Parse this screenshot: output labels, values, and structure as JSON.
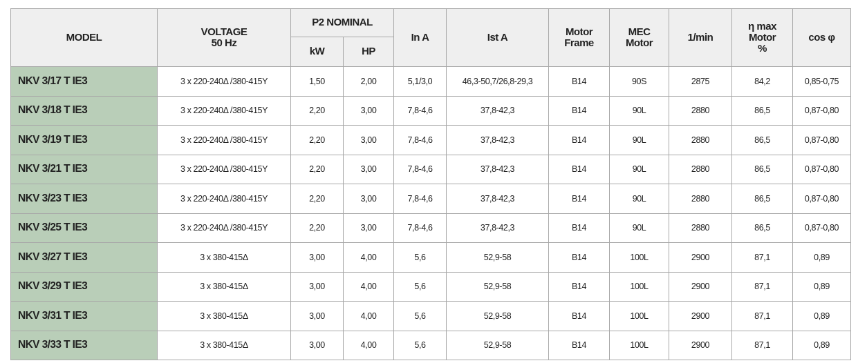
{
  "table": {
    "header": {
      "model": "MODEL",
      "voltage": [
        "VOLTAGE",
        "50 Hz"
      ],
      "p2": "P2 NOMINAL",
      "kw": "kW",
      "hp": "HP",
      "in": "In A",
      "ist": "Ist A",
      "frame": [
        "Motor",
        "Frame"
      ],
      "mec": [
        "MEC",
        "Motor"
      ],
      "rpm": "1/min",
      "eta": [
        "η max",
        "Motor",
        "%"
      ],
      "cos": "cos φ"
    },
    "rows": [
      [
        "NKV 3/17 T IE3",
        "3 x 220-240Δ /380-415Y",
        "1,50",
        "2,00",
        "5,1/3,0",
        "46,3-50,7/26,8-29,3",
        "B14",
        "90S",
        "2875",
        "84,2",
        "0,85-0,75"
      ],
      [
        "NKV 3/18 T IE3",
        "3 x 220-240Δ /380-415Y",
        "2,20",
        "3,00",
        "7,8-4,6",
        "37,8-42,3",
        "B14",
        "90L",
        "2880",
        "86,5",
        "0,87-0,80"
      ],
      [
        "NKV 3/19 T IE3",
        "3 x 220-240Δ /380-415Y",
        "2,20",
        "3,00",
        "7,8-4,6",
        "37,8-42,3",
        "B14",
        "90L",
        "2880",
        "86,5",
        "0,87-0,80"
      ],
      [
        "NKV 3/21 T IE3",
        "3 x 220-240Δ /380-415Y",
        "2,20",
        "3,00",
        "7,8-4,6",
        "37,8-42,3",
        "B14",
        "90L",
        "2880",
        "86,5",
        "0,87-0,80"
      ],
      [
        "NKV 3/23 T IE3",
        "3 x 220-240Δ /380-415Y",
        "2,20",
        "3,00",
        "7,8-4,6",
        "37,8-42,3",
        "B14",
        "90L",
        "2880",
        "86,5",
        "0,87-0,80"
      ],
      [
        "NKV 3/25 T IE3",
        "3 x 220-240Δ /380-415Y",
        "2,20",
        "3,00",
        "7,8-4,6",
        "37,8-42,3",
        "B14",
        "90L",
        "2880",
        "86,5",
        "0,87-0,80"
      ],
      [
        "NKV 3/27 T IE3",
        "3 x 380-415Δ",
        "3,00",
        "4,00",
        "5,6",
        "52,9-58",
        "B14",
        "100L",
        "2900",
        "87,1",
        "0,89"
      ],
      [
        "NKV 3/29 T IE3",
        "3 x 380-415Δ",
        "3,00",
        "4,00",
        "5,6",
        "52,9-58",
        "B14",
        "100L",
        "2900",
        "87,1",
        "0,89"
      ],
      [
        "NKV 3/31 T IE3",
        "3 x 380-415Δ",
        "3,00",
        "4,00",
        "5,6",
        "52,9-58",
        "B14",
        "100L",
        "2900",
        "87,1",
        "0,89"
      ],
      [
        "NKV 3/33 T IE3",
        "3 x 380-415Δ",
        "3,00",
        "4,00",
        "5,6",
        "52,9-58",
        "B14",
        "100L",
        "2900",
        "87,1",
        "0,89"
      ]
    ]
  }
}
